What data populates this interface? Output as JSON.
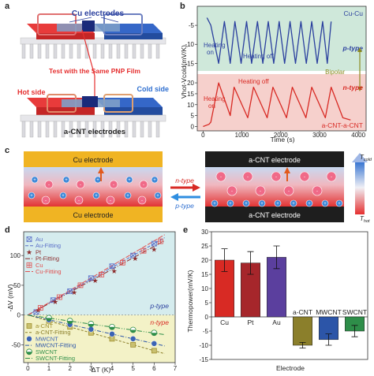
{
  "panels": {
    "a": "a",
    "b": "b",
    "c": "c",
    "d": "d",
    "e": "e"
  },
  "panel_a": {
    "cu_electrodes": "Cu electrodes",
    "test_label": "Test with the Same PNP Film",
    "hot_side": "Hot side",
    "cold_side": "Cold side",
    "acnt_electrodes": "a-CNT electrodes"
  },
  "panel_b": {
    "upper_label": "Cu-Cu",
    "upper_type": "p-type",
    "heating_on": "Heating on",
    "heating_off_upper": "Heating off",
    "bipolar": "Bipolar",
    "lower_type": "n-type",
    "heating_off_lower": "Heating off",
    "heating_on_lower": "Heating on",
    "lower_label": "a-CNT-a-CNT"
  },
  "panel_c": {
    "left_top": "Cu electrode",
    "left_bottom": "Cu electrode",
    "n_type": "n-type",
    "p_type": "p-type",
    "right_top": "a-CNT electrode",
    "right_bottom": "a-CNT electrode",
    "t_cold": "T",
    "t_cold_sub": "cold",
    "t_hot": "T",
    "t_hot_sub": "hot"
  },
  "panel_d": {
    "p_type": "p-type",
    "n_type": "n-type"
  },
  "colors": {
    "cu_blue": "#2a3f9e",
    "hot_red": "#e53030",
    "cold_blue": "#2f6fd0",
    "panel_b_top_bg": "#cfe8da",
    "panel_b_bottom_bg": "#f6d0cc",
    "panel_d_top_bg": "#d5ecee",
    "panel_d_bottom_bg": "#f3f2c7",
    "bar_cu": "#d82a24",
    "bar_pt": "#a6262b",
    "bar_au": "#5b3f9e",
    "bar_acnt": "#8b7f2b",
    "bar_mwcnt": "#2c55a8",
    "bar_swcnt": "#2e8e49",
    "olive_arrow": "#8a8a1f"
  },
  "chart_data": [
    {
      "panel": "b",
      "type": "line",
      "ylabel": "Vhot-Vcold(mV/K)",
      "xlabel": "Time (s)",
      "x_ticks": [
        0,
        1000,
        2000,
        3000,
        4000
      ],
      "upper_y_ticks": [
        -5,
        -10,
        -15
      ],
      "lower_y_ticks": [
        20,
        15,
        10,
        5,
        0
      ],
      "series": [
        {
          "name": "Cu-Cu",
          "x": [
            100,
            200,
            400,
            550,
            700,
            820,
            980,
            1120,
            1250,
            1400,
            1540,
            1680,
            1820,
            1960,
            2100,
            2240,
            2380,
            2520,
            2660,
            2800,
            2940,
            3080,
            3200,
            3300
          ],
          "y": [
            -3,
            -5,
            -15,
            -4,
            -15,
            -4,
            -15,
            -4,
            -15,
            -4,
            -15,
            -4,
            -15,
            -4,
            -15,
            -4,
            -15,
            -4,
            -15,
            -4,
            -15,
            -4,
            -15,
            -4
          ]
        },
        {
          "name": "a-CNT-a-CNT",
          "x": [
            0,
            150,
            200,
            400,
            700,
            800,
            1150,
            1300,
            1650,
            1800,
            2150,
            2300,
            2650,
            2800,
            3150,
            3300,
            3600,
            3800
          ],
          "y": [
            0,
            1,
            2,
            20,
            5,
            18,
            4,
            18,
            4,
            18,
            4,
            18,
            4,
            18,
            4,
            18,
            4,
            3
          ]
        }
      ]
    },
    {
      "panel": "d",
      "type": "scatter",
      "xlabel": "ΔT (K)",
      "ylabel": "-ΔV (mV)",
      "xlim": [
        -0.2,
        7
      ],
      "ylim": [
        -80,
        140
      ],
      "x_ticks": [
        0,
        1,
        2,
        3,
        4,
        5,
        6,
        7
      ],
      "y_ticks": [
        -50,
        0,
        50,
        100
      ],
      "series": [
        {
          "name": "Au",
          "x": [
            0.4,
            1.2,
            2.0,
            3.0,
            4.0,
            5.0,
            6.0
          ],
          "y": [
            5,
            25,
            40,
            62,
            82,
            100,
            120
          ]
        },
        {
          "name": "Au-Fitting",
          "x": [
            0,
            6.5
          ],
          "y": [
            0,
            130
          ]
        },
        {
          "name": "Pt",
          "x": [
            0.5,
            1.3,
            2.2,
            3.2,
            4.1,
            5.1,
            6.0
          ],
          "y": [
            8,
            22,
            38,
            58,
            74,
            95,
            110
          ]
        },
        {
          "name": "Pt-Fitting",
          "x": [
            0,
            6.5
          ],
          "y": [
            0,
            125
          ]
        },
        {
          "name": "Cu",
          "x": [
            0.6,
            1.5,
            2.5,
            3.5,
            4.5,
            5.5,
            6.3
          ],
          "y": [
            12,
            30,
            50,
            68,
            88,
            108,
            124
          ]
        },
        {
          "name": "Cu-Fitting",
          "x": [
            0,
            6.5
          ],
          "y": [
            0,
            135
          ]
        },
        {
          "name": "a-CNT",
          "x": [
            1.0,
            2.0,
            3.0,
            4.0,
            5.0,
            6.0
          ],
          "y": [
            -10,
            -20,
            -30,
            -40,
            -50,
            -60
          ]
        },
        {
          "name": "a-CNT-Fitting",
          "x": [
            0,
            6.5
          ],
          "y": [
            0,
            -65
          ]
        },
        {
          "name": "MWCNT",
          "x": [
            1.0,
            2.0,
            3.0,
            4.0,
            5.0,
            6.0
          ],
          "y": [
            -8,
            -16,
            -24,
            -32,
            -40,
            -48
          ]
        },
        {
          "name": "MWCNT-Fitting",
          "x": [
            0,
            6.5
          ],
          "y": [
            0,
            -52
          ]
        },
        {
          "name": "SWCNT",
          "x": [
            1.0,
            2.0,
            3.0,
            4.0,
            5.0,
            6.0
          ],
          "y": [
            -5,
            -10,
            -15,
            -20,
            -25,
            -30
          ]
        },
        {
          "name": "SWCNT-Fitting",
          "x": [
            0,
            6.5
          ],
          "y": [
            0,
            -33
          ]
        }
      ]
    },
    {
      "panel": "e",
      "type": "bar",
      "xlabel": "Electrode",
      "ylabel": "Thermopower(mV/K)",
      "categories": [
        "Cu",
        "Pt",
        "Au",
        "a-CNT",
        "MWCNT",
        "SWCNT"
      ],
      "values": [
        20,
        19,
        21,
        -10,
        -8,
        -5
      ],
      "errors": [
        4,
        4,
        4,
        1,
        2,
        2
      ],
      "ylim": [
        -15,
        30
      ],
      "y_ticks": [
        -15,
        -10,
        -5,
        0,
        5,
        10,
        15,
        20,
        25,
        30
      ]
    }
  ]
}
